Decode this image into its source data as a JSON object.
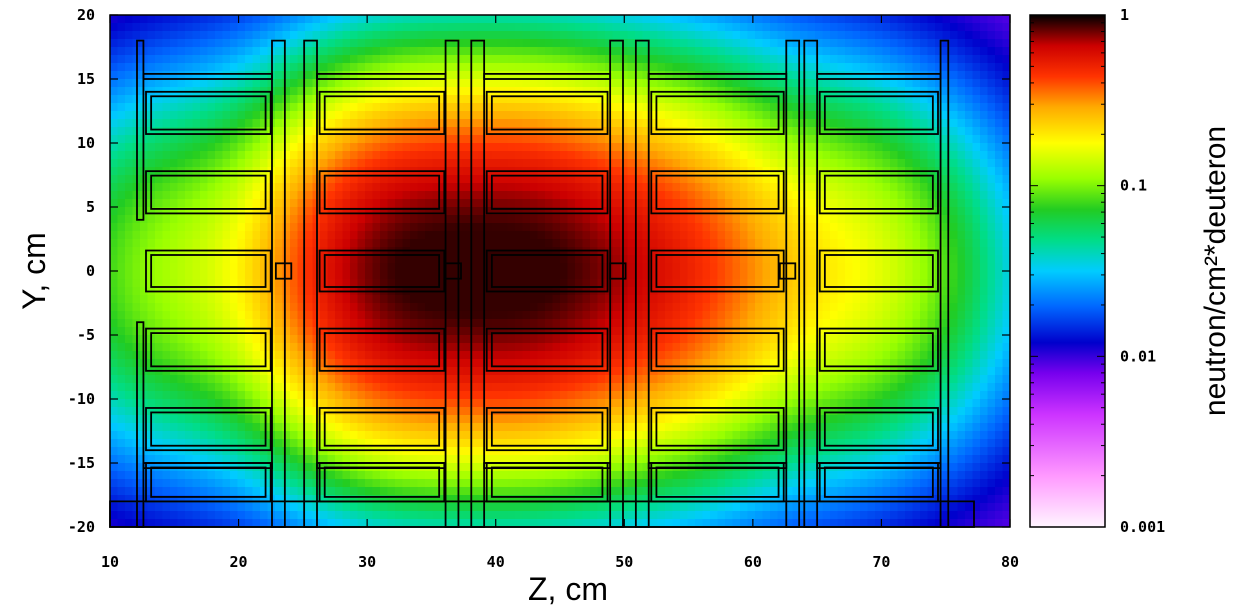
{
  "chart_data": {
    "type": "heatmap",
    "title": "",
    "xlabel": "Z, cm",
    "ylabel": "Y, cm",
    "xlim": [
      10,
      80
    ],
    "ylim": [
      -20,
      20
    ],
    "x_ticks": [
      "10",
      "20",
      "30",
      "40",
      "50",
      "60",
      "70",
      "80"
    ],
    "y_ticks": [
      "20",
      "15",
      "10",
      "5",
      "0",
      "-5",
      "-10",
      "-15",
      "-20"
    ],
    "colorbar": {
      "label": "neutron/cm²*deuteron",
      "scale": "log",
      "range": [
        0.001,
        1
      ],
      "ticks": [
        "1",
        "0.1",
        "0.01",
        "0.001"
      ]
    },
    "field_peaks": [
      {
        "z": 32,
        "y": 0,
        "value": 0.7
      },
      {
        "z": 43,
        "y": 0,
        "value": 0.7
      },
      {
        "z": 54,
        "y": 0,
        "value": 0.35
      },
      {
        "z": 68,
        "y": 0,
        "value": 0.12
      },
      {
        "z": 15,
        "y": 0,
        "value": 0.08
      }
    ],
    "grid": false,
    "colormap": [
      "#fff5ff",
      "#ff55ff",
      "#9900ff",
      "#0000cc",
      "#0099ff",
      "#00dddd",
      "#22cc22",
      "#99ff00",
      "#ffff00",
      "#ffaa00",
      "#ff0000",
      "#cc0000",
      "#000000"
    ]
  }
}
